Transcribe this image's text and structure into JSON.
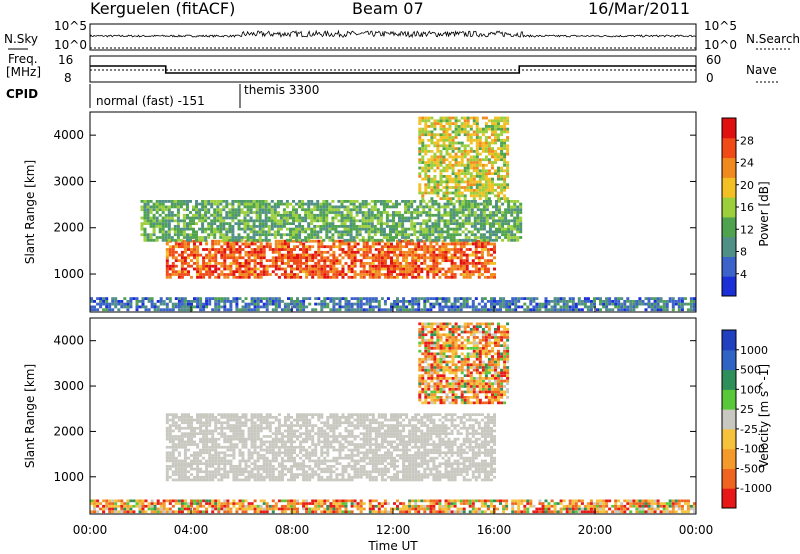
{
  "header": {
    "title": "Kerguelen (fitACF)",
    "beam": "Beam 07",
    "date": "16/Mar/2011"
  },
  "strip_labels": {
    "nsky": "N.Sky",
    "nsearch": "N.Search",
    "freq_line1": "Freq.",
    "freq_line2": "[MHz]",
    "nave": "Nave",
    "cpid": "CPID",
    "noise_left_ticks": [
      "10^5",
      "10^0"
    ],
    "noise_right_ticks": [
      "10^5",
      "10^0"
    ],
    "freq_ticks": [
      "16",
      "8"
    ],
    "nave_ticks": [
      "60",
      "0"
    ]
  },
  "cpid_segments": [
    {
      "label": "normal (fast) -151",
      "start_hour": 0,
      "end_hour": 6
    },
    {
      "label": "themis 3300",
      "start_hour": 6,
      "end_hour": 24
    }
  ],
  "colors": {
    "power": [
      "#1a2fd8",
      "#3b63c9",
      "#4f8f86",
      "#4fa34f",
      "#9ccf3c",
      "#f2c022",
      "#f08a1e",
      "#f04a16",
      "#e11010"
    ],
    "velocity": [
      "#2040c0",
      "#2f63c4",
      "#2f8f5a",
      "#58c83a",
      "#c8c8c0",
      "#f5c23a",
      "#f39a2a",
      "#ee6420",
      "#e81818"
    ],
    "ground_scatter": "#c8c8c0"
  },
  "x_axis": {
    "label": "Time UT",
    "ticks": [
      "00:00",
      "04:00",
      "08:00",
      "12:00",
      "16:00",
      "20:00",
      "00:00"
    ]
  },
  "chart_data": [
    {
      "type": "heatmap",
      "title": "",
      "xlabel": "Time UT",
      "ylabel": "Slant Range [km]",
      "xlim": [
        0,
        24
      ],
      "ylim": [
        180,
        4500
      ],
      "y_ticks": [
        "1000",
        "2000",
        "3000",
        "4000"
      ],
      "colorbar_label": "Power [dB]",
      "colorbar_ticks": [
        "4",
        "8",
        "12",
        "16",
        "20",
        "24",
        "28"
      ],
      "regions": [
        {
          "name": "main_echo_band",
          "t": [
            3,
            16
          ],
          "range_km": [
            900,
            1700
          ],
          "power_db": 27
        },
        {
          "name": "upper_arc",
          "t": [
            2,
            17
          ],
          "range_km": [
            1700,
            2600
          ],
          "power_db": 12
        },
        {
          "name": "high_range_cluster",
          "t": [
            13,
            16.5
          ],
          "range_km": [
            2600,
            4400
          ],
          "power_db": 18
        },
        {
          "name": "near_range_noise",
          "t": [
            0,
            24
          ],
          "range_km": [
            200,
            500
          ],
          "power_db": 6
        }
      ]
    },
    {
      "type": "heatmap",
      "title": "",
      "xlabel": "Time UT",
      "ylabel": "Slant Range [km]",
      "xlim": [
        0,
        24
      ],
      "ylim": [
        180,
        4500
      ],
      "y_ticks": [
        "1000",
        "2000",
        "3000",
        "4000"
      ],
      "colorbar_label": "Velocity [m s^-1]",
      "colorbar_ticks": [
        "1000",
        "500",
        "100",
        "25",
        "-25",
        "-100",
        "-500",
        "-1000"
      ],
      "regions": [
        {
          "name": "ground_scatter_band",
          "t": [
            3,
            16
          ],
          "range_km": [
            900,
            2400
          ],
          "velocity": 0
        },
        {
          "name": "high_range_cluster",
          "t": [
            13,
            16.5
          ],
          "range_km": [
            2600,
            4400
          ],
          "velocity": -150
        },
        {
          "name": "near_range_noise",
          "t": [
            0,
            24
          ],
          "range_km": [
            200,
            500
          ],
          "velocity": -60
        }
      ]
    }
  ]
}
